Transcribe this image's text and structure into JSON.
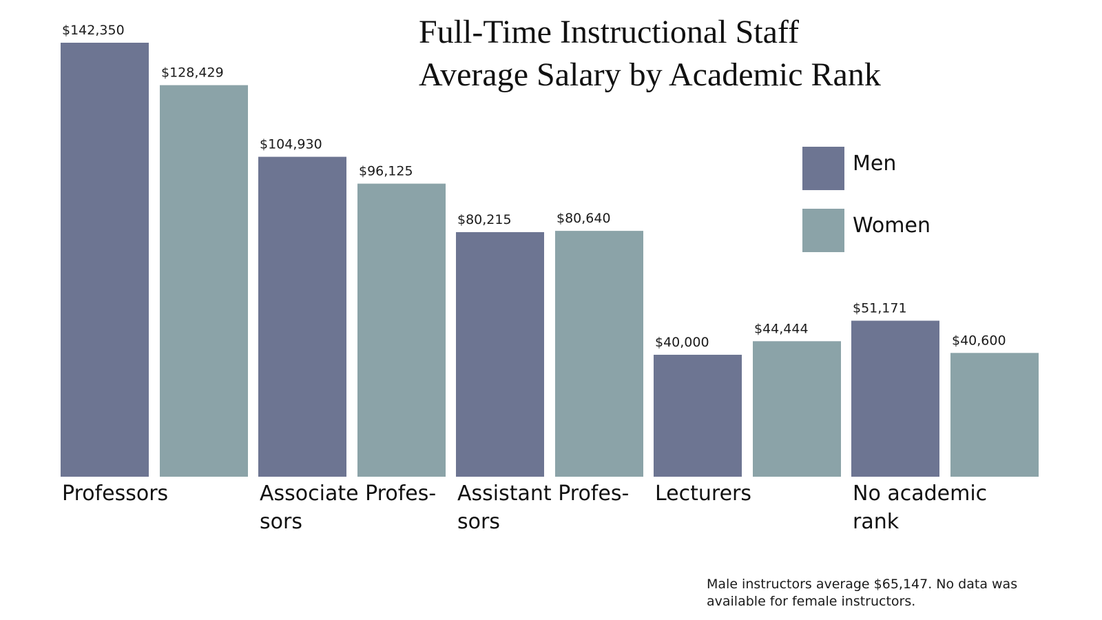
{
  "chart_data": {
    "type": "bar",
    "title_lines": [
      "Full-Time Instructional Staff",
      "Average Salary by Academic Rank"
    ],
    "categories": [
      "Professors",
      "Associate Profes-sors",
      "Assistant Profes-sors",
      "Lecturers",
      "No academic rank"
    ],
    "category_lines": [
      [
        "Professors"
      ],
      [
        "Associate Profes-",
        "sors"
      ],
      [
        "Assistant Profes-",
        "sors"
      ],
      [
        "Lecturers"
      ],
      [
        "No academic",
        "rank"
      ]
    ],
    "series": [
      {
        "name": "Men",
        "color": "#6d7592",
        "values": [
          142350,
          104930,
          80215,
          40000,
          51171
        ],
        "labels": [
          "$142,350",
          "$104,930",
          "$80,215",
          "$40,000",
          "$51,171"
        ]
      },
      {
        "name": "Women",
        "color": "#8ba3a8",
        "values": [
          128429,
          96125,
          80640,
          44444,
          40600
        ],
        "labels": [
          "$128,429",
          "$96,125",
          "$80,640",
          "$44,444",
          "$40,600"
        ]
      }
    ],
    "ylim": [
      0,
      142350
    ],
    "grid": false,
    "legend_position": "right",
    "note": "Male instructors average $65,147. No data was available for female instructors."
  }
}
